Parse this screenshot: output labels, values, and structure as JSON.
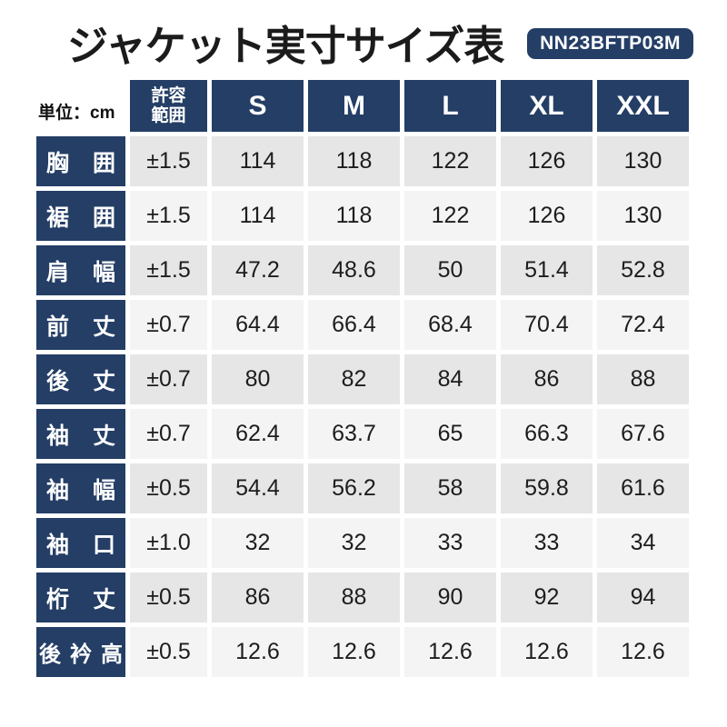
{
  "header": {
    "title": "ジャケット実寸サイズ表",
    "product_code": "NN23BFTP03M"
  },
  "table": {
    "unit_label": "単位：cm",
    "tolerance_header": [
      "許容",
      "範囲"
    ],
    "size_headers": [
      "S",
      "M",
      "L",
      "XL",
      "XXL"
    ],
    "rows": [
      {
        "label": "胸囲",
        "cells": [
          "±1.5",
          "114",
          "118",
          "122",
          "126",
          "130"
        ]
      },
      {
        "label": "裾囲",
        "cells": [
          "±1.5",
          "114",
          "118",
          "122",
          "126",
          "130"
        ]
      },
      {
        "label": "肩幅",
        "cells": [
          "±1.5",
          "47.2",
          "48.6",
          "50",
          "51.4",
          "52.8"
        ]
      },
      {
        "label": "前丈",
        "cells": [
          "±0.7",
          "64.4",
          "66.4",
          "68.4",
          "70.4",
          "72.4"
        ]
      },
      {
        "label": "後丈",
        "cells": [
          "±0.7",
          "80",
          "82",
          "84",
          "86",
          "88"
        ]
      },
      {
        "label": "袖丈",
        "cells": [
          "±0.7",
          "62.4",
          "63.7",
          "65",
          "66.3",
          "67.6"
        ]
      },
      {
        "label": "袖幅",
        "cells": [
          "±0.5",
          "54.4",
          "56.2",
          "58",
          "59.8",
          "61.6"
        ]
      },
      {
        "label": "袖口",
        "cells": [
          "±1.0",
          "32",
          "32",
          "33",
          "33",
          "34"
        ]
      },
      {
        "label": "桁丈",
        "cells": [
          "±0.5",
          "86",
          "88",
          "90",
          "92",
          "94"
        ]
      },
      {
        "label": "後衿高",
        "cells": [
          "±0.5",
          "12.6",
          "12.6",
          "12.6",
          "12.6",
          "12.6"
        ]
      }
    ]
  },
  "chart_data": {
    "type": "table",
    "title": "ジャケット実寸サイズ表",
    "product_code": "NN23BFTP03M",
    "unit": "cm",
    "columns": [
      "",
      "許容範囲",
      "S",
      "M",
      "L",
      "XL",
      "XXL"
    ],
    "rows": [
      [
        "胸囲",
        "±1.5",
        114,
        118,
        122,
        126,
        130
      ],
      [
        "裾囲",
        "±1.5",
        114,
        118,
        122,
        126,
        130
      ],
      [
        "肩幅",
        "±1.5",
        47.2,
        48.6,
        50,
        51.4,
        52.8
      ],
      [
        "前丈",
        "±0.7",
        64.4,
        66.4,
        68.4,
        70.4,
        72.4
      ],
      [
        "後丈",
        "±0.7",
        80,
        82,
        84,
        86,
        88
      ],
      [
        "袖丈",
        "±0.7",
        62.4,
        63.7,
        65,
        66.3,
        67.6
      ],
      [
        "袖幅",
        "±0.5",
        54.4,
        56.2,
        58,
        59.8,
        61.6
      ],
      [
        "袖口",
        "±1.0",
        32,
        32,
        33,
        33,
        34
      ],
      [
        "桁丈",
        "±0.5",
        86,
        88,
        90,
        92,
        94
      ],
      [
        "後衿高",
        "±0.5",
        12.6,
        12.6,
        12.6,
        12.6,
        12.6
      ]
    ]
  },
  "colors": {
    "navy": "#243e66",
    "row_dark": "#e6e6e6",
    "row_light": "#f4f4f4",
    "text": "#1d1d1d",
    "white": "#ffffff"
  }
}
